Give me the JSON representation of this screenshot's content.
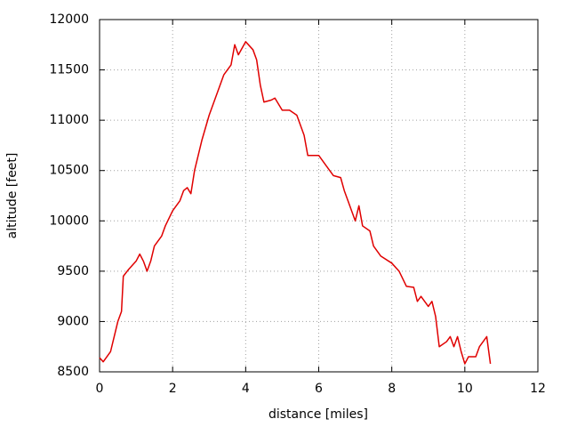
{
  "chart_data": {
    "type": "line",
    "x_label": "distance [miles]",
    "y_label": "altitude [feet]",
    "x": [
      0,
      0.1,
      0.3,
      0.4,
      0.5,
      0.6,
      0.65,
      0.8,
      1.0,
      1.1,
      1.2,
      1.3,
      1.4,
      1.5,
      1.7,
      1.8,
      2.0,
      2.2,
      2.3,
      2.4,
      2.5,
      2.6,
      2.8,
      3.0,
      3.2,
      3.4,
      3.6,
      3.7,
      3.8,
      4.0,
      4.2,
      4.3,
      4.4,
      4.5,
      4.7,
      4.8,
      5.0,
      5.2,
      5.4,
      5.6,
      5.7,
      6.0,
      6.2,
      6.4,
      6.6,
      6.7,
      6.8,
      7.0,
      7.1,
      7.2,
      7.4,
      7.5,
      7.7,
      8.0,
      8.2,
      8.4,
      8.6,
      8.7,
      8.8,
      9.0,
      9.1,
      9.2,
      9.3,
      9.5,
      9.6,
      9.7,
      9.8,
      9.9,
      10.0,
      10.1,
      10.3,
      10.4,
      10.5,
      10.6,
      10.7
    ],
    "series": [
      {
        "name": "altitude",
        "color": "#e00000",
        "values": [
          8640,
          8600,
          8700,
          8850,
          9000,
          9100,
          9450,
          9520,
          9600,
          9670,
          9600,
          9500,
          9600,
          9750,
          9850,
          9950,
          10100,
          10200,
          10300,
          10330,
          10270,
          10500,
          10800,
          11050,
          11250,
          11450,
          11550,
          11750,
          11650,
          11780,
          11700,
          11600,
          11350,
          11180,
          11200,
          11220,
          11100,
          11100,
          11050,
          10850,
          10650,
          10650,
          10550,
          10450,
          10430,
          10300,
          10200,
          10000,
          10150,
          9950,
          9900,
          9750,
          9650,
          9580,
          9500,
          9350,
          9340,
          9200,
          9250,
          9150,
          9200,
          9050,
          8750,
          8800,
          8850,
          8750,
          8850,
          8700,
          8580,
          8650,
          8650,
          8750,
          8800,
          8850,
          8580
        ]
      }
    ],
    "xlim": [
      0,
      12
    ],
    "xticks": [
      0,
      2,
      4,
      6,
      8,
      10,
      12
    ],
    "ylim": [
      8500,
      12000
    ],
    "yticks": [
      8500,
      9000,
      9500,
      10000,
      10500,
      11000,
      11500,
      12000
    ],
    "grid": true
  }
}
